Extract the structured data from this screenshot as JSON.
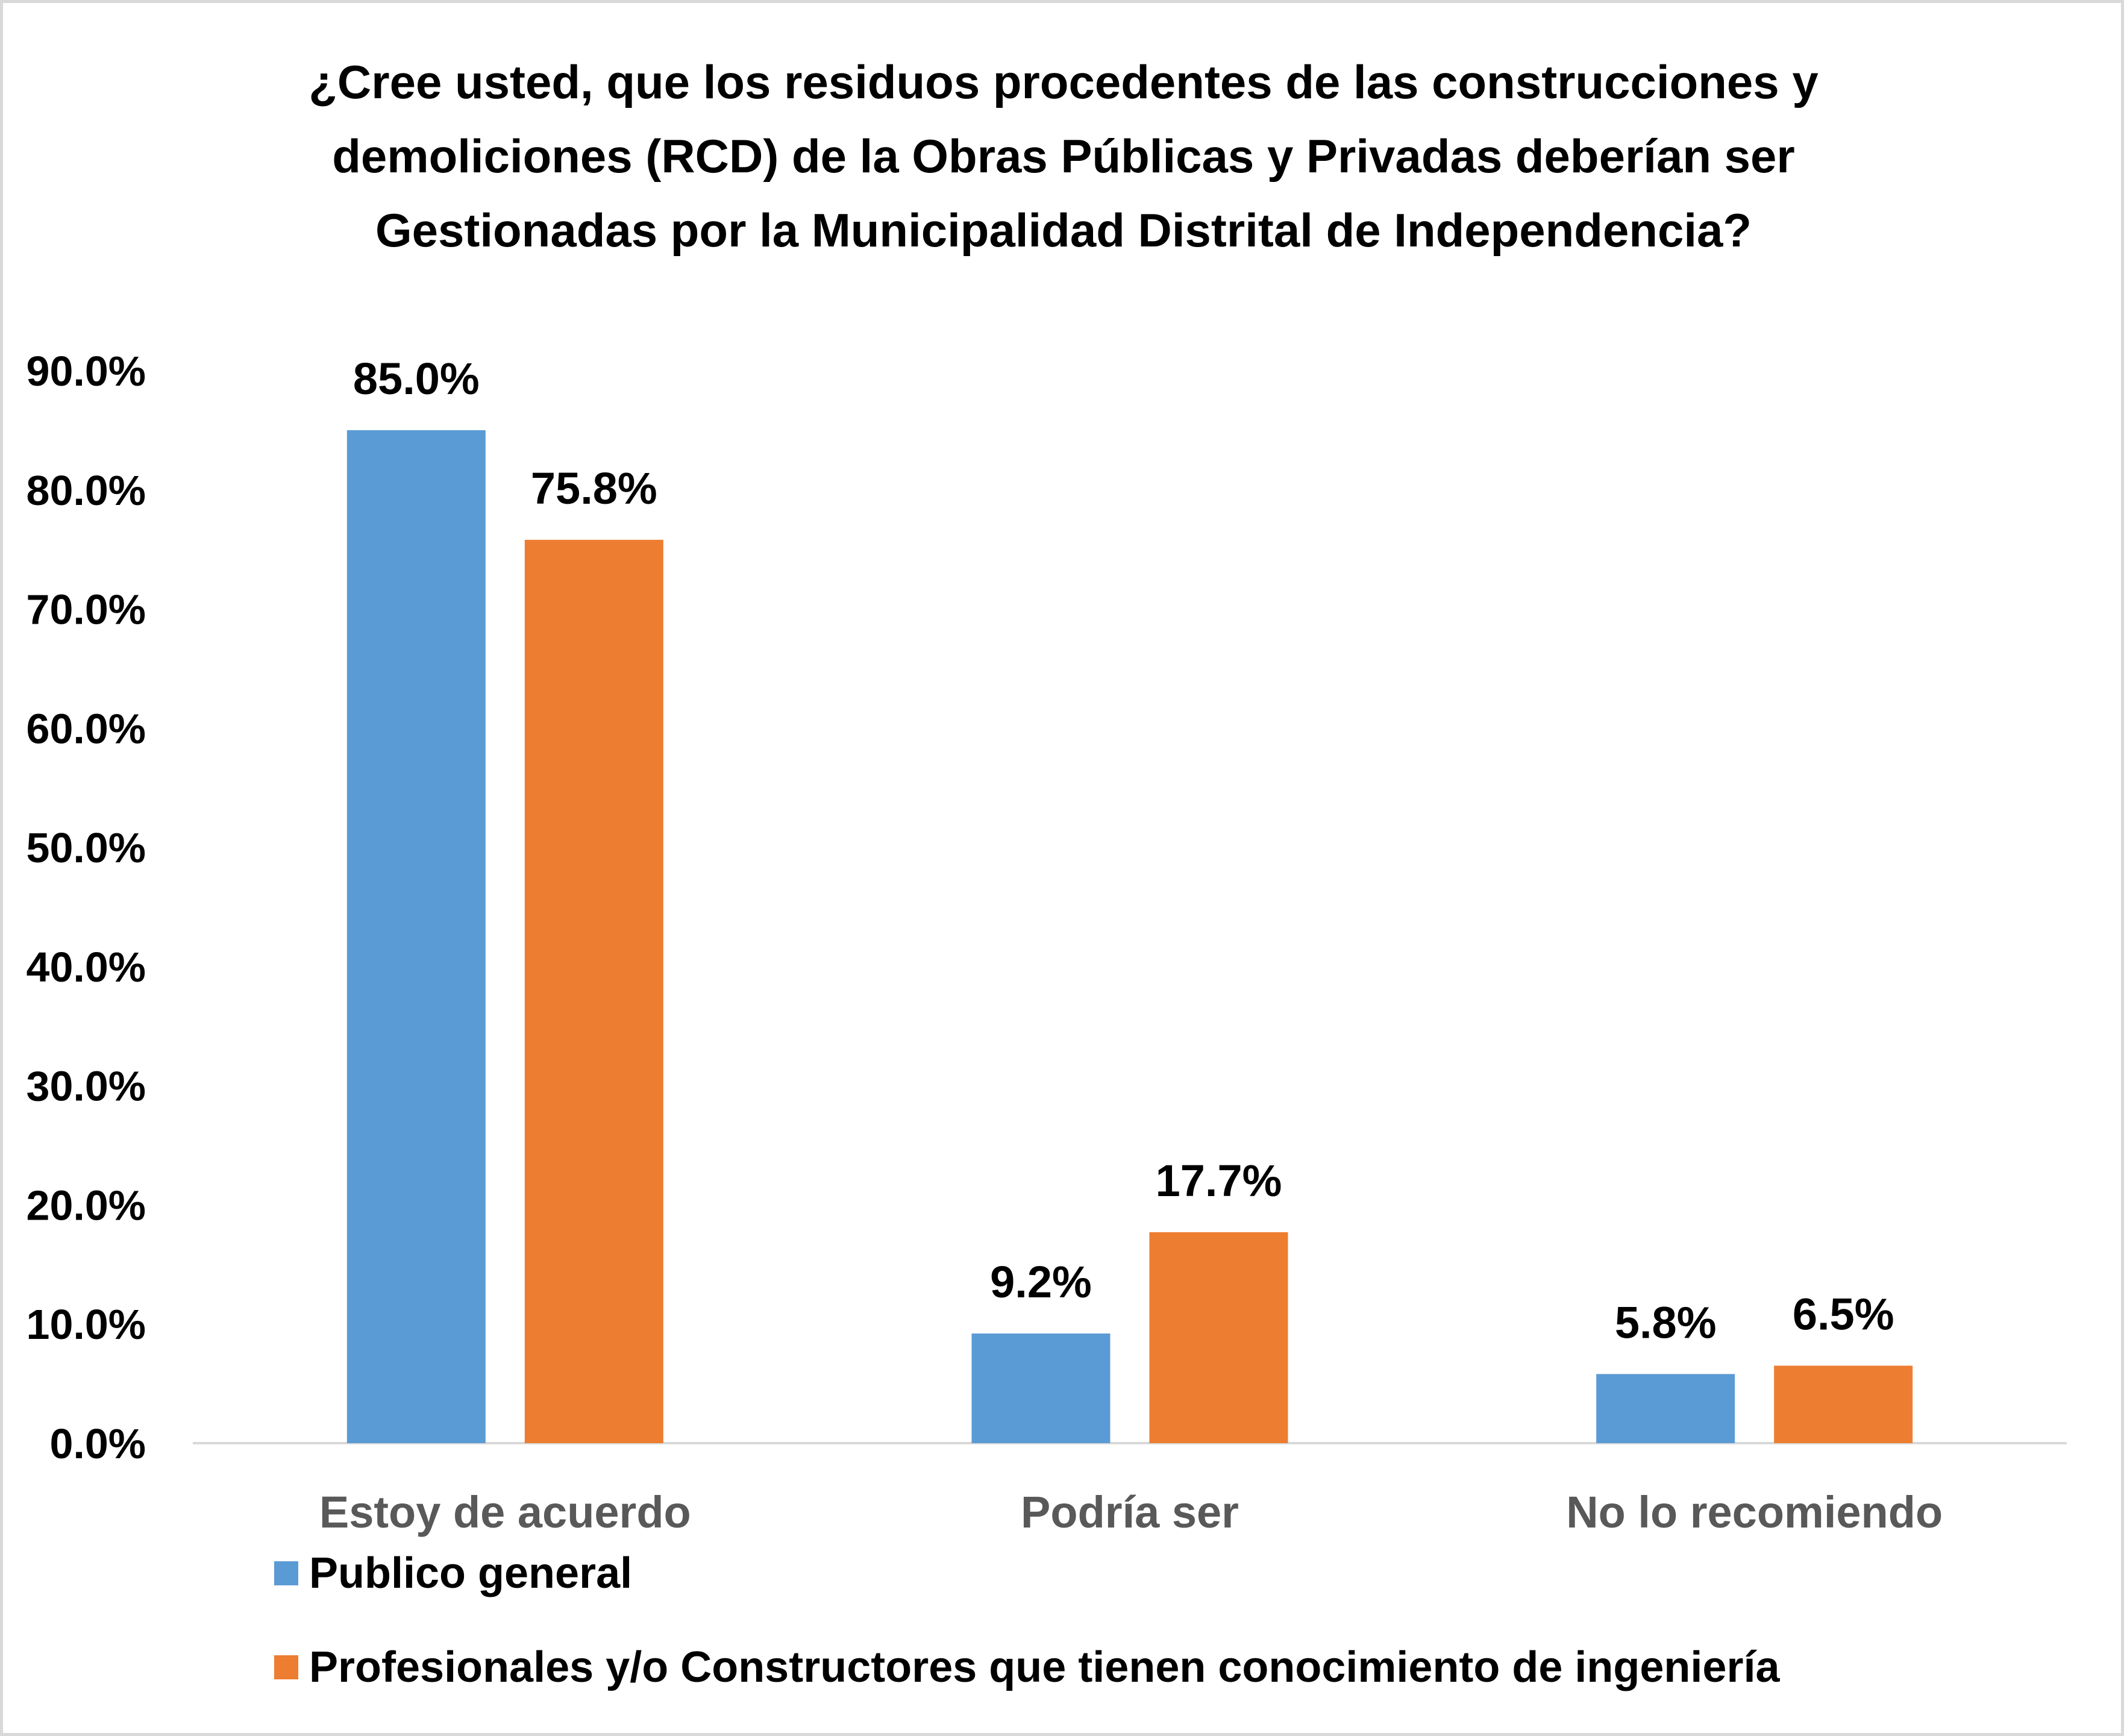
{
  "chart_data": {
    "type": "bar",
    "title_lines": [
      "¿Cree usted, que los residuos procedentes de las construcciones y",
      "demoliciones (RCD) de la Obras Públicas y Privadas deberían ser",
      "Gestionadas por la Municipalidad Distrital de Independencia?"
    ],
    "categories": [
      "Estoy de acuerdo",
      "Podría ser",
      "No lo recomiendo"
    ],
    "series": [
      {
        "name": "Publico general",
        "color": "#5b9bd5",
        "values": [
          85.0,
          9.2,
          5.8
        ],
        "labels": [
          "85.0%",
          "9.2%",
          "5.8%"
        ]
      },
      {
        "name": "Profesionales y/o Constructores que tienen conocimiento de ingeniería",
        "color": "#ed7d31",
        "values": [
          75.8,
          17.7,
          6.5
        ],
        "labels": [
          "75.8%",
          "17.7%",
          "6.5%"
        ]
      }
    ],
    "y_ticks": [
      "0.0%",
      "10.0%",
      "20.0%",
      "30.0%",
      "40.0%",
      "50.0%",
      "60.0%",
      "70.0%",
      "80.0%",
      "90.0%"
    ],
    "ylim": [
      0,
      90
    ],
    "grid": false,
    "legend_position": "bottom-left",
    "xlabel": "",
    "ylabel": ""
  }
}
